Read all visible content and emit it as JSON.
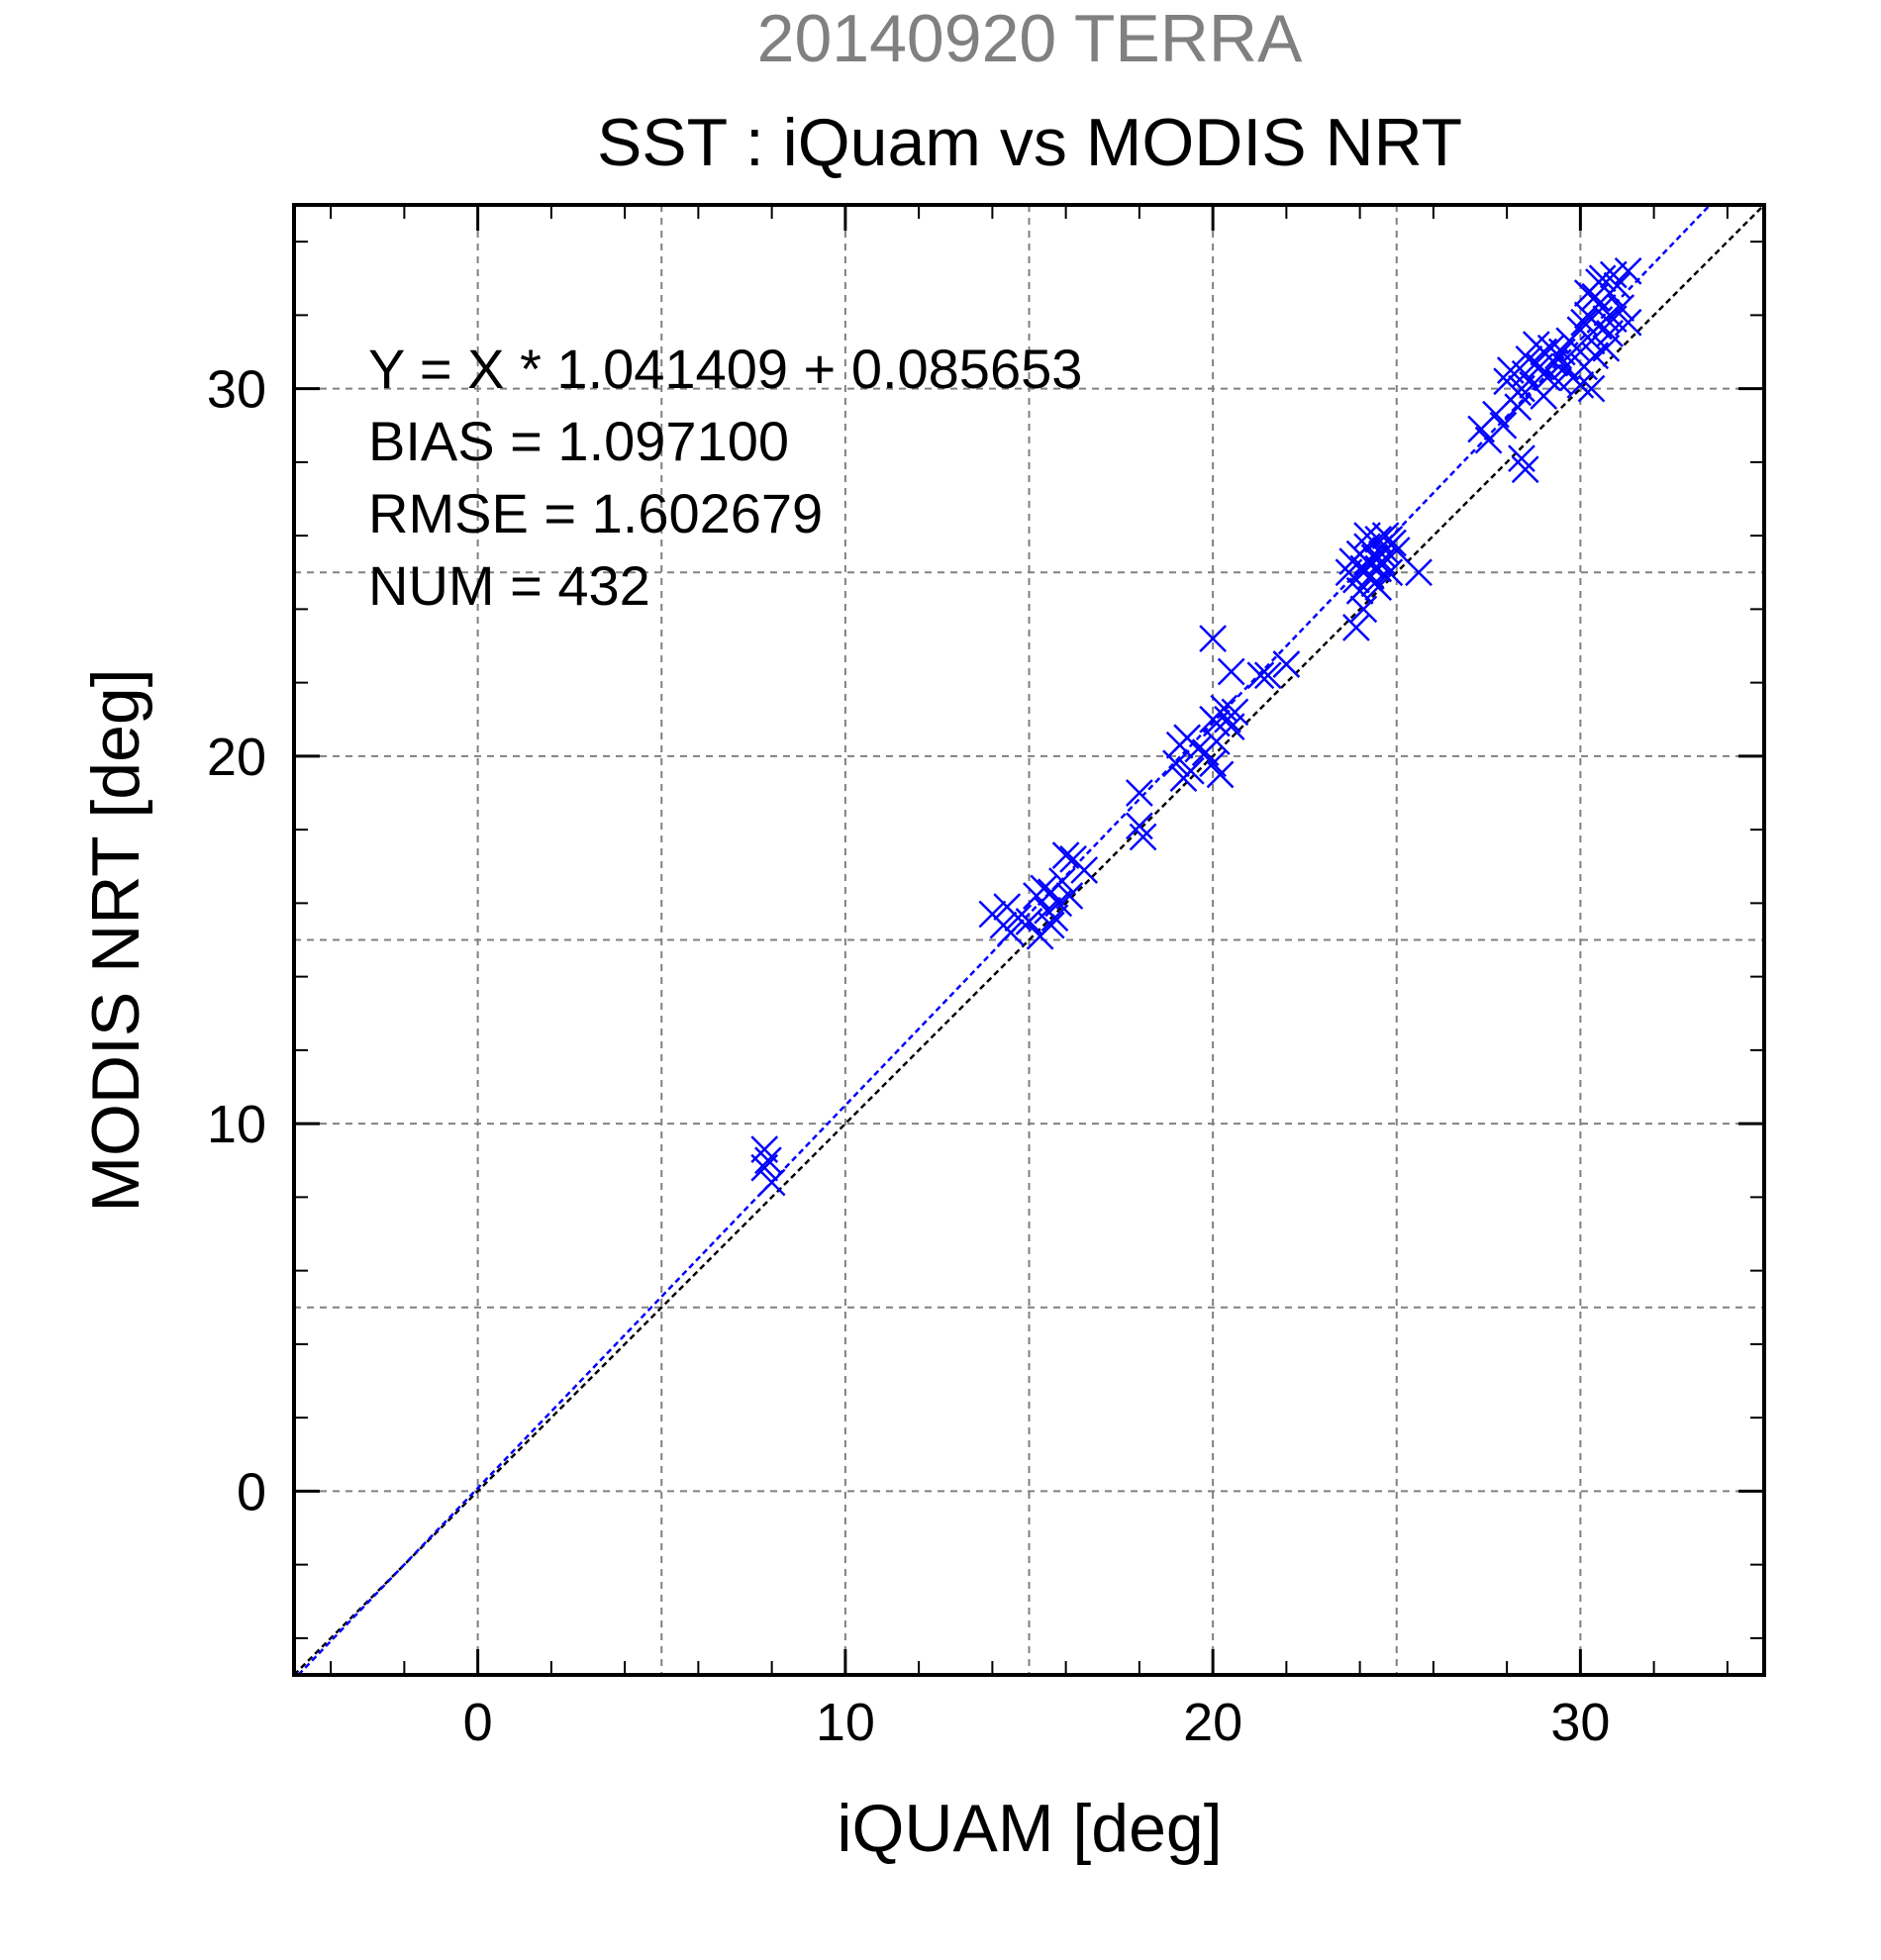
{
  "chart_data": {
    "type": "scatter",
    "date_title": "20140920 TERRA",
    "title": "SST : iQuam vs MODIS NRT",
    "xlabel": "iQUAM [deg]",
    "ylabel": "MODIS NRT [deg]",
    "xlim": [
      -5,
      35
    ],
    "ylim": [
      -5,
      35
    ],
    "xticks": [
      0,
      10,
      20,
      30
    ],
    "yticks": [
      0,
      10,
      20,
      30
    ],
    "grid": true,
    "stats": [
      "Y = X * 1.041409 + 0.085653",
      "BIAS = 1.097100",
      "RMSE = 1.602679",
      "NUM = 432"
    ],
    "fit_line": {
      "slope": 1.041409,
      "intercept": 0.085653,
      "color": "#0000ff"
    },
    "identity_line": {
      "slope": 1,
      "intercept": 0,
      "color": "#000000"
    },
    "colors": {
      "points": "#0000ff",
      "date_title": "#808080"
    },
    "series": [
      {
        "marker": "x",
        "points": [
          [
            7.8,
            9.3
          ],
          [
            7.8,
            8.8
          ],
          [
            8.0,
            8.4
          ],
          [
            7.9,
            9.0
          ],
          [
            14.0,
            15.7
          ],
          [
            14.3,
            15.4
          ],
          [
            14.5,
            15.2
          ],
          [
            14.7,
            15.6
          ],
          [
            14.4,
            15.9
          ],
          [
            15.0,
            15.5
          ],
          [
            15.3,
            15.1
          ],
          [
            15.5,
            15.8
          ],
          [
            15.6,
            16.3
          ],
          [
            15.8,
            16.0
          ],
          [
            15.9,
            16.6
          ],
          [
            15.4,
            16.4
          ],
          [
            15.7,
            15.6
          ],
          [
            16.0,
            17.3
          ],
          [
            16.2,
            17.2
          ],
          [
            16.1,
            16.2
          ],
          [
            16.5,
            16.9
          ],
          [
            15.2,
            16.2
          ],
          [
            15.6,
            15.4
          ],
          [
            18.0,
            19.0
          ],
          [
            18.0,
            18.1
          ],
          [
            18.1,
            17.8
          ],
          [
            19.0,
            19.8
          ],
          [
            19.1,
            20.3
          ],
          [
            19.3,
            20.5
          ],
          [
            19.4,
            19.6
          ],
          [
            19.6,
            20.2
          ],
          [
            19.2,
            19.4
          ],
          [
            19.8,
            20.1
          ],
          [
            20.0,
            21.0
          ],
          [
            20.1,
            20.4
          ],
          [
            20.2,
            19.5
          ],
          [
            20.3,
            21.3
          ],
          [
            20.4,
            21.0
          ],
          [
            20.5,
            20.8
          ],
          [
            20.6,
            21.2
          ],
          [
            20.0,
            19.8
          ],
          [
            20.1,
            20.9
          ],
          [
            20.0,
            23.2
          ],
          [
            20.5,
            22.3
          ],
          [
            21.3,
            22.2
          ],
          [
            21.5,
            22.2
          ],
          [
            22.0,
            22.5
          ],
          [
            23.7,
            25.0
          ],
          [
            23.8,
            25.3
          ],
          [
            23.9,
            24.8
          ],
          [
            24.0,
            25.5
          ],
          [
            24.1,
            25.1
          ],
          [
            24.2,
            25.7
          ],
          [
            24.3,
            24.9
          ],
          [
            24.4,
            25.4
          ],
          [
            24.5,
            25.9
          ],
          [
            24.6,
            25.3
          ],
          [
            24.7,
            25.6
          ],
          [
            24.8,
            25.0
          ],
          [
            24.9,
            25.8
          ],
          [
            24.0,
            24.5
          ],
          [
            24.2,
            26.0
          ],
          [
            24.5,
            24.6
          ],
          [
            24.7,
            26.0
          ],
          [
            24.1,
            24.0
          ],
          [
            23.9,
            23.5
          ],
          [
            24.3,
            25.2
          ],
          [
            24.6,
            25.5
          ],
          [
            24.4,
            24.7
          ],
          [
            25.0,
            25.6
          ],
          [
            25.6,
            25.0
          ],
          [
            24.8,
            25.9
          ],
          [
            24.2,
            25.3
          ],
          [
            24.5,
            25.1
          ],
          [
            27.3,
            28.9
          ],
          [
            27.5,
            28.6
          ],
          [
            27.7,
            29.3
          ],
          [
            27.9,
            29.0
          ],
          [
            28.0,
            30.2
          ],
          [
            28.1,
            30.5
          ],
          [
            28.3,
            29.9
          ],
          [
            28.4,
            30.0
          ],
          [
            28.5,
            30.4
          ],
          [
            28.6,
            30.8
          ],
          [
            28.7,
            30.1
          ],
          [
            28.8,
            31.2
          ],
          [
            28.9,
            30.6
          ],
          [
            29.0,
            31.0
          ],
          [
            29.1,
            30.3
          ],
          [
            29.2,
            31.1
          ],
          [
            29.3,
            30.7
          ],
          [
            29.4,
            30.9
          ],
          [
            29.5,
            31.0
          ],
          [
            29.6,
            30.6
          ],
          [
            29.7,
            31.3
          ],
          [
            29.8,
            30.3
          ],
          [
            29.9,
            31.1
          ],
          [
            30.0,
            31.6
          ],
          [
            30.1,
            31.8
          ],
          [
            30.2,
            32.0
          ],
          [
            30.3,
            31.3
          ],
          [
            30.4,
            32.5
          ],
          [
            30.5,
            31.7
          ],
          [
            30.6,
            32.2
          ],
          [
            30.7,
            31.1
          ],
          [
            30.8,
            32.6
          ],
          [
            30.9,
            31.9
          ],
          [
            31.0,
            32.8
          ],
          [
            30.2,
            32.6
          ],
          [
            30.5,
            32.9
          ],
          [
            30.9,
            33.1
          ],
          [
            31.3,
            33.2
          ],
          [
            30.0,
            30.1
          ],
          [
            30.3,
            30.0
          ],
          [
            30.4,
            30.9
          ],
          [
            30.8,
            31.5
          ],
          [
            31.1,
            32.2
          ],
          [
            31.3,
            31.8
          ],
          [
            28.4,
            28.1
          ],
          [
            28.5,
            27.8
          ],
          [
            28.3,
            29.5
          ],
          [
            29.0,
            29.8
          ],
          [
            29.4,
            30.2
          ],
          [
            30.6,
            33.0
          ],
          [
            30.1,
            30.6
          ],
          [
            30.7,
            31.9
          ]
        ]
      }
    ]
  }
}
